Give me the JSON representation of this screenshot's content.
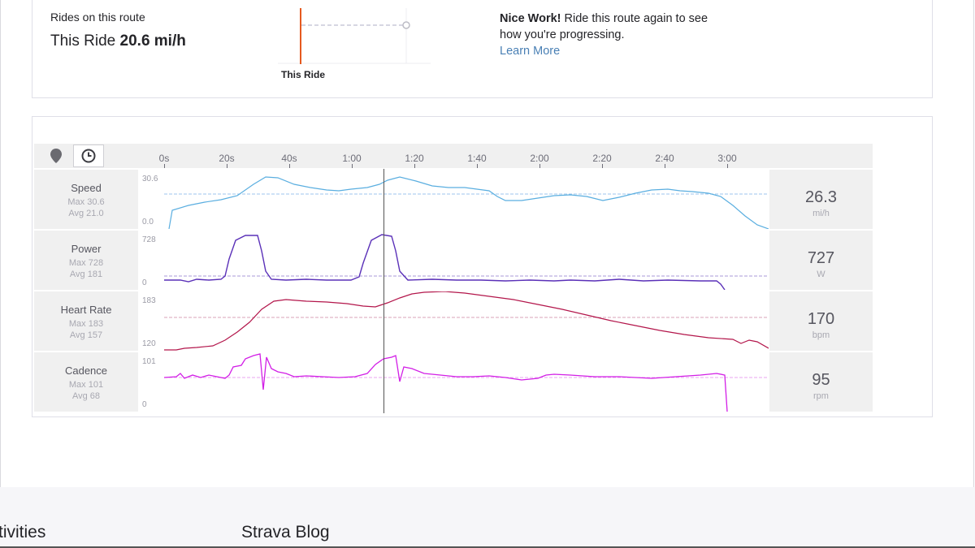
{
  "top": {
    "rides_label": "Rides on this route",
    "this_ride_prefix": "This Ride",
    "this_ride_speed": "20.6 mi/h",
    "mini_caption": "This Ride",
    "nice_bold": "Nice Work!",
    "nice_text": " Ride this route again to see how you're progressing.",
    "learn_more": "Learn More"
  },
  "toolbar": {
    "map_icon": "map-pin-icon",
    "time_icon": "clock-icon",
    "ticks": [
      "0s",
      "20s",
      "40s",
      "1:00",
      "1:20",
      "1:40",
      "2:00",
      "2:20",
      "2:40",
      "3:00"
    ]
  },
  "streams": [
    {
      "key": "speed",
      "title": "Speed",
      "max": "Max 30.6",
      "avg": "Avg 21.0",
      "axis_max": "30.6",
      "axis_min": "0.0",
      "value": "26.3",
      "unit": "mi/h",
      "color": "#5aaee0",
      "avg_color": "#9cc6ec"
    },
    {
      "key": "power",
      "title": "Power",
      "max": "Max 728",
      "avg": "Avg 181",
      "axis_max": "728",
      "axis_min": "0",
      "value": "727",
      "unit": "W",
      "color": "#5a30b8",
      "avg_color": "#a89ad8"
    },
    {
      "key": "heartrate",
      "title": "Heart Rate",
      "max": "Max 183",
      "avg": "Avg 157",
      "axis_max": "183",
      "axis_min": "120",
      "value": "170",
      "unit": "bpm",
      "color": "#b3164b",
      "avg_color": "#d9a3b8"
    },
    {
      "key": "cadence",
      "title": "Cadence",
      "max": "Max 101",
      "avg": "Avg 68",
      "axis_max": "101",
      "axis_min": "0",
      "value": "95",
      "unit": "rpm",
      "color": "#d21ee6",
      "avg_color": "#e9a6f0"
    }
  ],
  "footer": {
    "activities": "tivities",
    "blog": "Strava Blog"
  }
}
